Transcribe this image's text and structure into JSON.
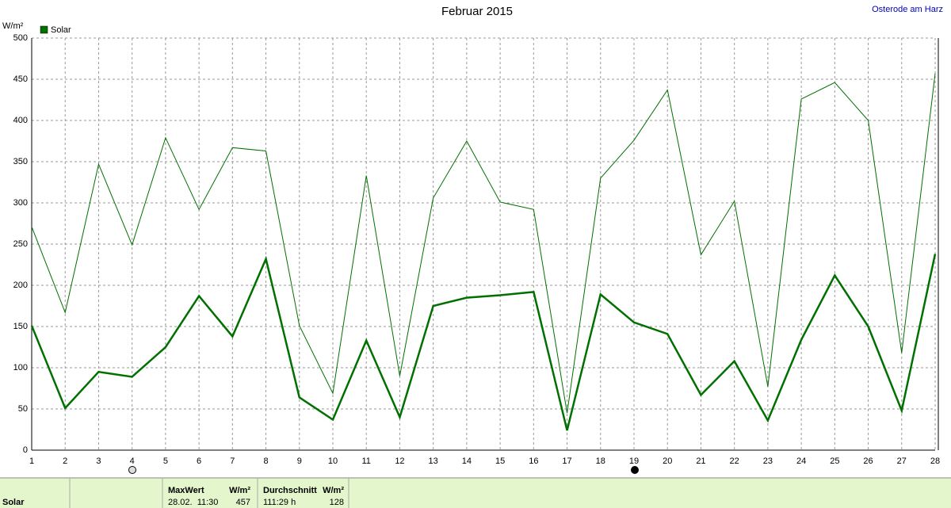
{
  "chart_data": {
    "type": "line",
    "title": "Februar 2015",
    "subtitle": "Osterode am Harz",
    "y_label": "W/m²",
    "x": [
      1,
      2,
      3,
      4,
      5,
      6,
      7,
      8,
      9,
      10,
      11,
      12,
      13,
      14,
      15,
      16,
      17,
      18,
      19,
      20,
      21,
      22,
      23,
      24,
      25,
      26,
      27,
      28
    ],
    "xlim": [
      1,
      28
    ],
    "xticks": [
      1,
      2,
      3,
      4,
      5,
      6,
      7,
      8,
      9,
      10,
      11,
      12,
      13,
      14,
      15,
      16,
      17,
      18,
      19,
      20,
      21,
      22,
      23,
      24,
      25,
      26,
      27,
      28
    ],
    "ylim": [
      0,
      500
    ],
    "yticks": [
      0,
      50,
      100,
      150,
      200,
      250,
      300,
      350,
      400,
      450,
      500
    ],
    "grid": true,
    "series": [
      {
        "name": "Solar",
        "color": "#007000",
        "width": 2.5,
        "values": [
          151,
          51,
          95,
          89,
          125,
          187,
          138,
          232,
          64,
          37,
          133,
          40,
          175,
          185,
          188,
          192,
          24,
          189,
          155,
          141,
          67,
          108,
          36,
          134,
          212,
          150,
          48,
          238
        ]
      },
      {
        "color": "#007000",
        "width": 1,
        "values": [
          271,
          167,
          347,
          249,
          379,
          292,
          367,
          363,
          151,
          69,
          333,
          90,
          306,
          375,
          301,
          292,
          45,
          330,
          376,
          437,
          237,
          302,
          77,
          426,
          446,
          400,
          118,
          457
        ]
      }
    ]
  },
  "table": {
    "row_label": "Solar",
    "max_header": "MaxWert",
    "max_unit": "W/m²",
    "max_time": "28.02.  11:30",
    "max_value": "457",
    "avg_header": "Durchschnitt",
    "avg_unit": "W/m²",
    "avg_time": "111:29 h",
    "avg_value": "128"
  }
}
